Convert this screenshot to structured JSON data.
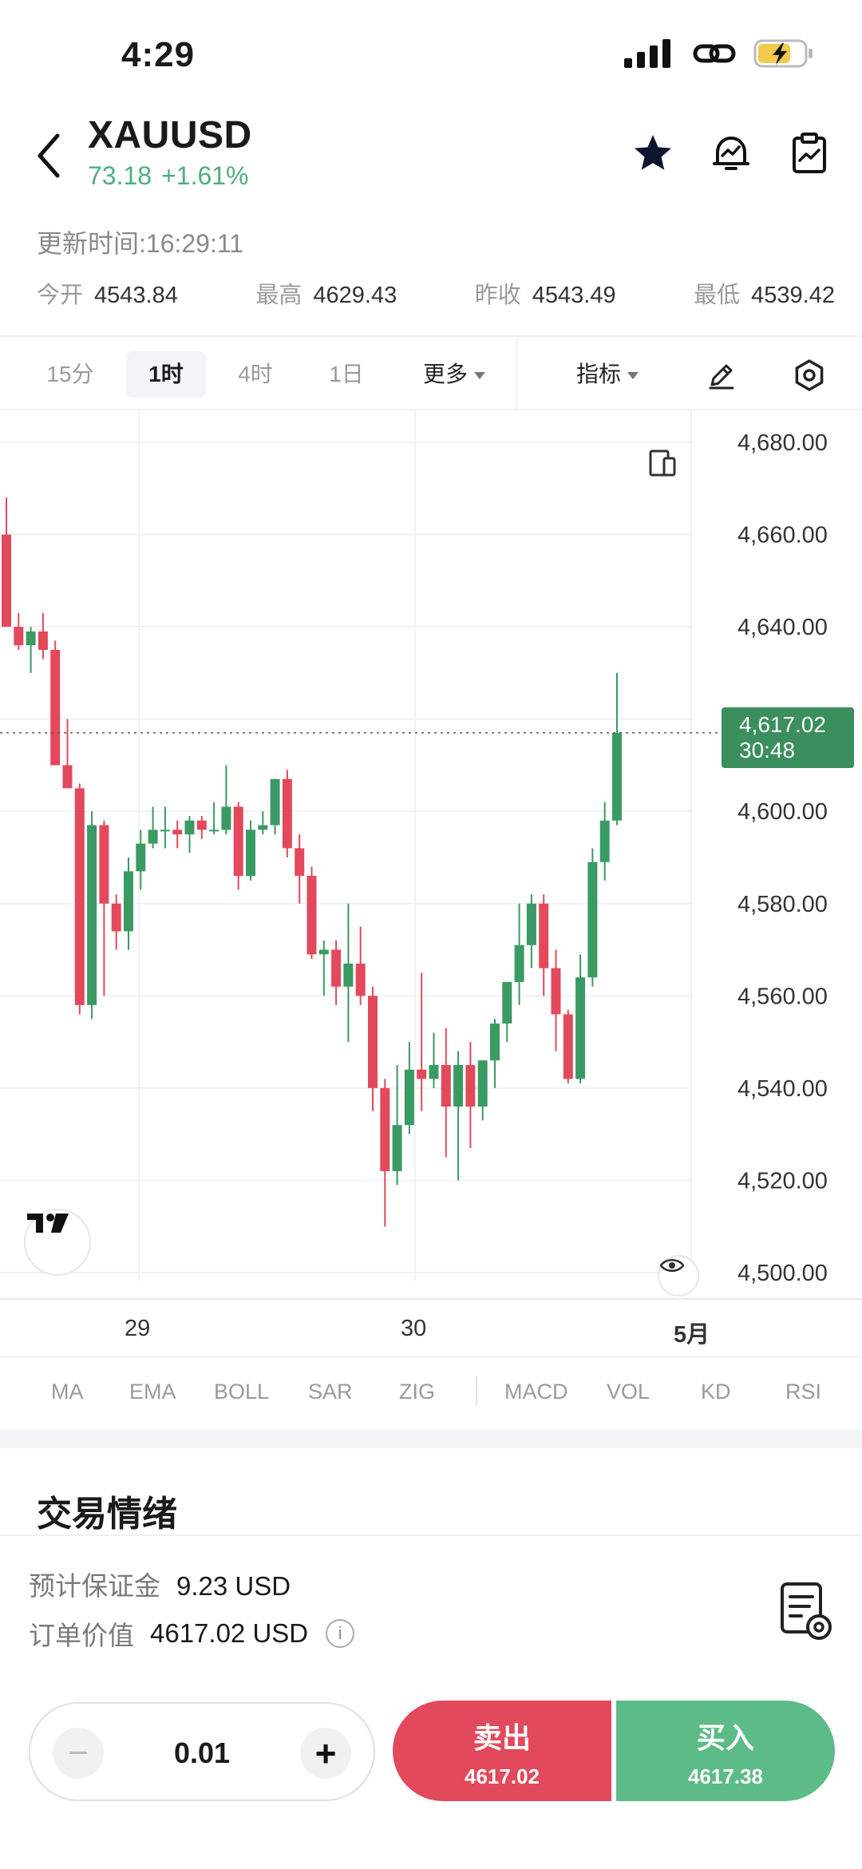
{
  "status_bar": {
    "time": "4:29"
  },
  "header": {
    "symbol": "XAUUSD",
    "change_value": "73.18",
    "change_pct": "+1.61%"
  },
  "update_time": "更新时间:16:29:11",
  "stats": [
    {
      "label": "今开",
      "value": "4543.84"
    },
    {
      "label": "最高",
      "value": "4629.43"
    },
    {
      "label": "昨收",
      "value": "4543.49"
    },
    {
      "label": "最低",
      "value": "4539.42"
    }
  ],
  "timeframes": {
    "t1": "15分",
    "t2": "1时",
    "t3": "4时",
    "t4": "1日",
    "more": "更多",
    "indicators": "指标",
    "active": "1时"
  },
  "chart_data": {
    "type": "candlestick",
    "ylim": [
      4500,
      4680
    ],
    "y_ticks": [
      "4,680.00",
      "4,660.00",
      "4,640.00",
      "4,620.00",
      "4,600.00",
      "4,580.00",
      "4,560.00",
      "4,540.00",
      "4,520.00",
      "4,500.00"
    ],
    "x_ticks": [
      "29",
      "30",
      "5月"
    ],
    "last_price": "4,617.02",
    "countdown": "30:48",
    "up_color": "#3a9a63",
    "down_color": "#e2495c",
    "candles": [
      [
        4660,
        4668,
        4640,
        4640
      ],
      [
        4640,
        4643,
        4635,
        4636
      ],
      [
        4636,
        4640,
        4630,
        4639
      ],
      [
        4639,
        4643,
        4633,
        4635
      ],
      [
        4635,
        4637,
        4610,
        4610
      ],
      [
        4610,
        4620,
        4605,
        4605
      ],
      [
        4605,
        4606,
        4556,
        4558
      ],
      [
        4558,
        4600,
        4555,
        4597
      ],
      [
        4597,
        4598,
        4560,
        4580
      ],
      [
        4580,
        4582,
        4570,
        4574
      ],
      [
        4574,
        4590,
        4570,
        4587
      ],
      [
        4587,
        4596,
        4583,
        4593
      ],
      [
        4593,
        4601,
        4592,
        4596
      ],
      [
        4596,
        4601,
        4592,
        4596
      ],
      [
        4596,
        4598,
        4592,
        4595
      ],
      [
        4595,
        4599,
        4591,
        4598
      ],
      [
        4598,
        4599,
        4594,
        4596
      ],
      [
        4596,
        4602,
        4595,
        4596
      ],
      [
        4596,
        4610,
        4595,
        4601
      ],
      [
        4601,
        4602,
        4583,
        4586
      ],
      [
        4586,
        4598,
        4585,
        4596
      ],
      [
        4596,
        4600,
        4595,
        4597
      ],
      [
        4597,
        4607,
        4595,
        4607
      ],
      [
        4607,
        4609,
        4590,
        4592
      ],
      [
        4592,
        4595,
        4580,
        4586
      ],
      [
        4586,
        4588,
        4568,
        4569
      ],
      [
        4569,
        4572,
        4560,
        4570
      ],
      [
        4570,
        4572,
        4558,
        4562
      ],
      [
        4562,
        4580,
        4550,
        4567
      ],
      [
        4567,
        4575,
        4558,
        4560
      ],
      [
        4560,
        4562,
        4535,
        4540
      ],
      [
        4540,
        4542,
        4510,
        4522
      ],
      [
        4522,
        4545,
        4519,
        4532
      ],
      [
        4532,
        4550,
        4530,
        4544
      ],
      [
        4544,
        4565,
        4535,
        4542
      ],
      [
        4542,
        4552,
        4540,
        4545
      ],
      [
        4545,
        4553,
        4525,
        4536
      ],
      [
        4536,
        4548,
        4520,
        4545
      ],
      [
        4545,
        4550,
        4527,
        4536
      ],
      [
        4536,
        4546,
        4533,
        4546
      ],
      [
        4546,
        4555,
        4540,
        4554
      ],
      [
        4554,
        4562,
        4550,
        4563
      ],
      [
        4563,
        4580,
        4558,
        4571
      ],
      [
        4571,
        4582,
        4566,
        4580
      ],
      [
        4580,
        4582,
        4560,
        4566
      ],
      [
        4566,
        4570,
        4548,
        4556
      ],
      [
        4556,
        4557,
        4541,
        4542
      ],
      [
        4542,
        4569,
        4541,
        4564
      ],
      [
        4564,
        4592,
        4562,
        4589
      ],
      [
        4589,
        4602,
        4585,
        4598
      ],
      [
        4598,
        4630,
        4597,
        4617
      ]
    ]
  },
  "indicator_tabs": [
    "MA",
    "EMA",
    "BOLL",
    "SAR",
    "ZIG",
    "MACD",
    "VOL",
    "KD",
    "RSI"
  ],
  "sentiment": {
    "title": "交易情绪"
  },
  "order": {
    "margin_label": "预计保证金",
    "margin_value": "9.23 USD",
    "value_label": "订单价值",
    "value_value": "4617.02 USD",
    "info_glyph": "i"
  },
  "trade": {
    "quantity": "0.01",
    "minus": "−",
    "plus": "+",
    "sell_label": "卖出",
    "sell_price": "4617.02",
    "buy_label": "买入",
    "buy_price": "4617.38"
  }
}
